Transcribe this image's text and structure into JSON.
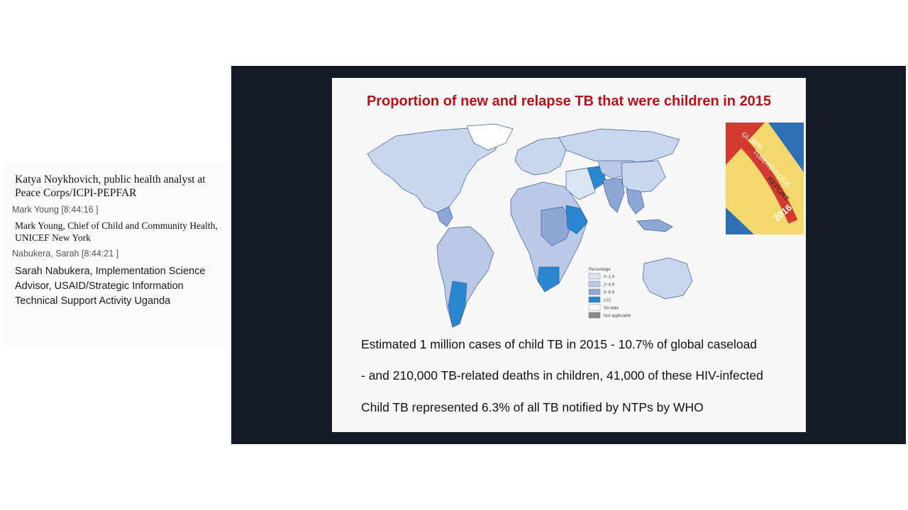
{
  "chat": {
    "message1": "Katya Noykhovich, public health analyst at Peace Corps/ICPI-PEPFAR",
    "meta1": "Mark Young [8:44:16 ]",
    "message2": "Mark Young, Chief of Child and Community Health, UNICEF New York",
    "meta2": "Nabukera, Sarah [8:44:21 ]",
    "message3": "Sarah Nabukera, Implementation Science Advisor, USAID/Strategic Information Technical Support Activity Uganda"
  },
  "slide": {
    "title": "Proportion of new and relapse TB that were children in 2015",
    "stats": [
      "Estimated 1 million cases of child TB in 2015 - 10.7% of global caseload",
      "- and 210,000 TB-related deaths in children, 41,000 of these HIV-infected",
      "Child TB represented 6.3% of all TB notified by NTPs by WHO"
    ],
    "legend": {
      "title": "Percentage",
      "items": [
        {
          "label": "0–1.9",
          "color": "#dbe4f3"
        },
        {
          "label": "2–4.9",
          "color": "#b9c9e6"
        },
        {
          "label": "5–9.9",
          "color": "#8fa7d6"
        },
        {
          "label": "≥10",
          "color": "#2a87cf"
        },
        {
          "label": "No data",
          "color": "#ffffff"
        },
        {
          "label": "Not applicable",
          "color": "#8a8a8a"
        }
      ]
    },
    "cover": {
      "line1": "GLOBAL",
      "line2": "TUBERCULOSIS",
      "line3": "REPORT",
      "year": "2016"
    }
  },
  "colors": {
    "stage_bg": "#131b25",
    "title_red": "#b5121b"
  }
}
